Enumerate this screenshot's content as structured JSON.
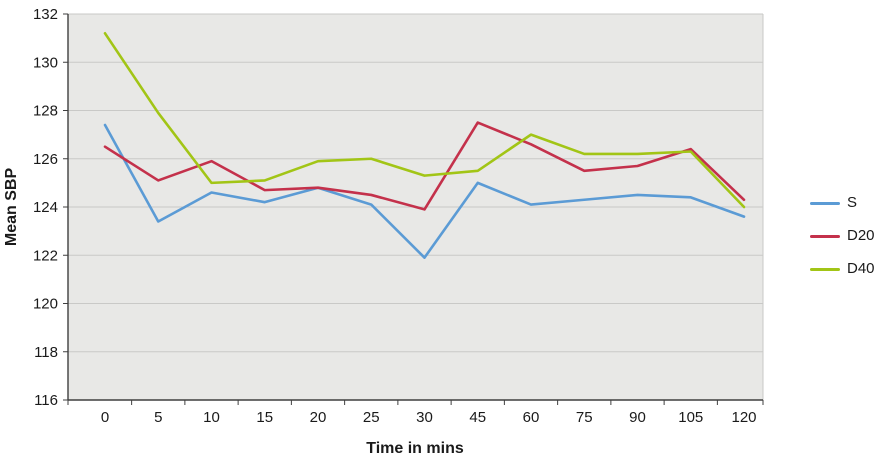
{
  "chart": {
    "colors": {
      "plot_bg": "#e8e8e6",
      "gridline": "#c9c9c7",
      "axis": "#3f3f3f",
      "text": "#1a1a1a"
    }
  },
  "chart_data": {
    "type": "line",
    "title": "",
    "xlabel": "Time in mins",
    "ylabel": "Mean SBP",
    "categories": [
      "0",
      "5",
      "10",
      "15",
      "20",
      "25",
      "30",
      "45",
      "60",
      "75",
      "90",
      "105",
      "120"
    ],
    "x_values": [
      0,
      5,
      10,
      15,
      20,
      25,
      30,
      45,
      60,
      75,
      90,
      105,
      120
    ],
    "series": [
      {
        "name": "S",
        "color": "#5b9bd5",
        "values": [
          127.4,
          123.4,
          124.6,
          124.2,
          124.8,
          124.1,
          121.9,
          125.0,
          124.1,
          124.3,
          124.5,
          124.4,
          123.6
        ]
      },
      {
        "name": "D20",
        "color": "#c4314b",
        "values": [
          126.5,
          125.1,
          125.9,
          124.7,
          124.8,
          124.5,
          123.9,
          127.5,
          126.6,
          125.5,
          125.7,
          126.4,
          124.3
        ]
      },
      {
        "name": "D40",
        "color": "#a2c516",
        "values": [
          131.2,
          127.9,
          125.0,
          125.1,
          125.9,
          126.0,
          125.3,
          125.5,
          127.0,
          126.2,
          126.2,
          126.3,
          124.0
        ]
      }
    ],
    "ylim": [
      116,
      132
    ],
    "y_ticks": [
      116,
      118,
      120,
      122,
      124,
      126,
      128,
      130,
      132
    ],
    "grid": "horizontal",
    "legend_position": "right"
  }
}
